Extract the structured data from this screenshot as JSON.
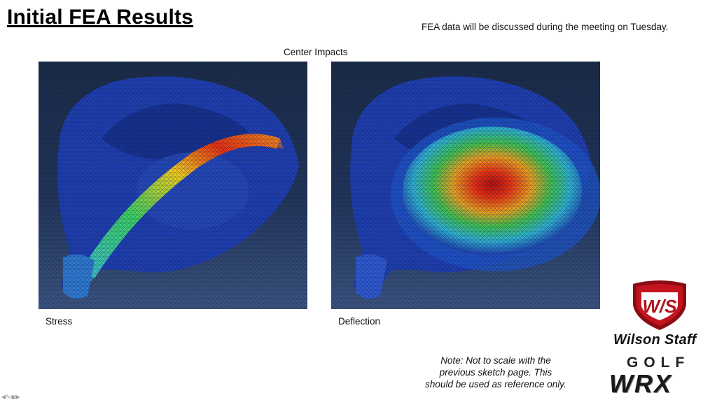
{
  "slide": {
    "title": "Initial FEA Results",
    "top_note": "FEA data will be discussed during the meeting on Tuesday.",
    "group_label": "Center Impacts",
    "panels": [
      {
        "caption": "Stress"
      },
      {
        "caption": "Deflection"
      }
    ],
    "bottom_note": [
      "Note: Not to scale with the",
      "previous sketch page. This",
      "should be used as reference only."
    ]
  },
  "logos": {
    "shield_text": "W/S",
    "brand_name": "Wilson Staff",
    "golf": "GOLF",
    "wrx": "WRX"
  },
  "colors": {
    "shield_red": "#b3121c",
    "mesh_blue": "#1f3fb0",
    "hot_red": "#e01010"
  }
}
